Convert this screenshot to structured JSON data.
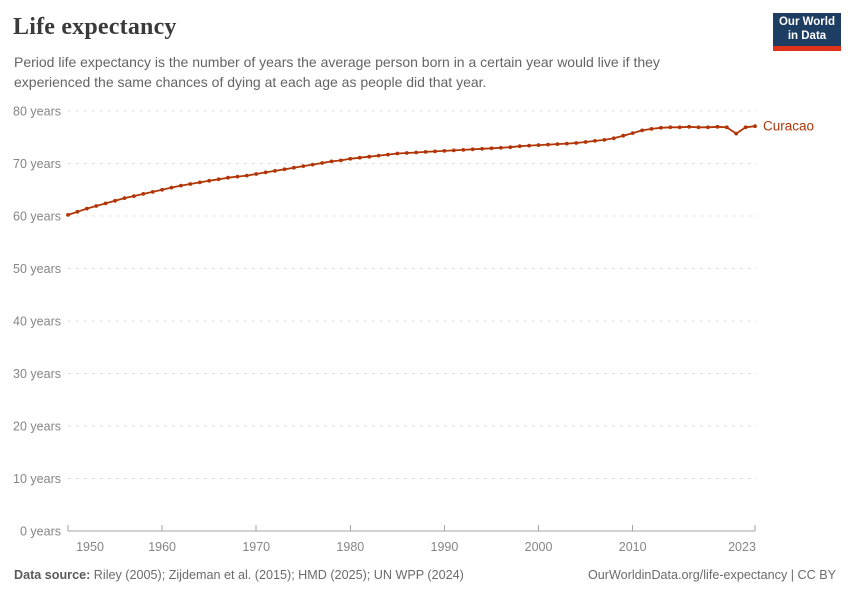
{
  "header": {
    "title": "Life expectancy",
    "subtitle_line1": "Period life expectancy is the number of years the average person born in a certain year would live if they",
    "subtitle_line2": "experienced the same chances of dying at each age as people did that year.",
    "logo": {
      "line1": "Our World",
      "line2": "in Data",
      "bg_color": "#1d3d63",
      "bar_color": "#e0311b"
    }
  },
  "chart_data": {
    "type": "line",
    "title": "Life expectancy",
    "xlabel": "",
    "ylabel": "",
    "xlim": [
      1950,
      2023
    ],
    "ylim": [
      0,
      80
    ],
    "x_ticks": [
      1950,
      1960,
      1970,
      1980,
      1990,
      2000,
      2010,
      2023
    ],
    "y_ticks": [
      0,
      10,
      20,
      30,
      40,
      50,
      60,
      70,
      80
    ],
    "y_tick_suffix": " years",
    "grid": "horizontal-dashed",
    "legend_position": "end-of-line-label",
    "series": [
      {
        "name": "Curacao",
        "color": "#B13507",
        "x": [
          1950,
          1951,
          1952,
          1953,
          1954,
          1955,
          1956,
          1957,
          1958,
          1959,
          1960,
          1961,
          1962,
          1963,
          1964,
          1965,
          1966,
          1967,
          1968,
          1969,
          1970,
          1971,
          1972,
          1973,
          1974,
          1975,
          1976,
          1977,
          1978,
          1979,
          1980,
          1981,
          1982,
          1983,
          1984,
          1985,
          1986,
          1987,
          1988,
          1989,
          1990,
          1991,
          1992,
          1993,
          1994,
          1995,
          1996,
          1997,
          1998,
          1999,
          2000,
          2001,
          2002,
          2003,
          2004,
          2005,
          2006,
          2007,
          2008,
          2009,
          2010,
          2011,
          2012,
          2013,
          2014,
          2015,
          2016,
          2017,
          2018,
          2019,
          2020,
          2021,
          2022,
          2023
        ],
        "values": [
          60.2,
          60.8,
          61.4,
          61.9,
          62.4,
          62.9,
          63.4,
          63.8,
          64.2,
          64.6,
          65.0,
          65.4,
          65.8,
          66.1,
          66.4,
          66.7,
          67.0,
          67.3,
          67.5,
          67.7,
          68.0,
          68.3,
          68.6,
          68.9,
          69.2,
          69.5,
          69.8,
          70.1,
          70.4,
          70.6,
          70.9,
          71.1,
          71.3,
          71.5,
          71.7,
          71.9,
          72.0,
          72.1,
          72.2,
          72.3,
          72.4,
          72.5,
          72.6,
          72.7,
          72.8,
          72.9,
          73.0,
          73.1,
          73.3,
          73.4,
          73.5,
          73.6,
          73.7,
          73.8,
          73.9,
          74.1,
          74.3,
          74.5,
          74.8,
          75.3,
          75.8,
          76.3,
          76.6,
          76.8,
          76.9,
          76.9,
          77.0,
          76.9,
          76.9,
          77.0,
          76.9,
          75.7,
          76.9,
          77.1
        ]
      }
    ]
  },
  "footer": {
    "datasource_label": "Data source:",
    "datasource_text": " Riley (2005); Zijdeman et al. (2015); HMD (2025); UN WPP (2024)",
    "link_text": "OurWorldinData.org/life-expectancy | CC BY"
  }
}
